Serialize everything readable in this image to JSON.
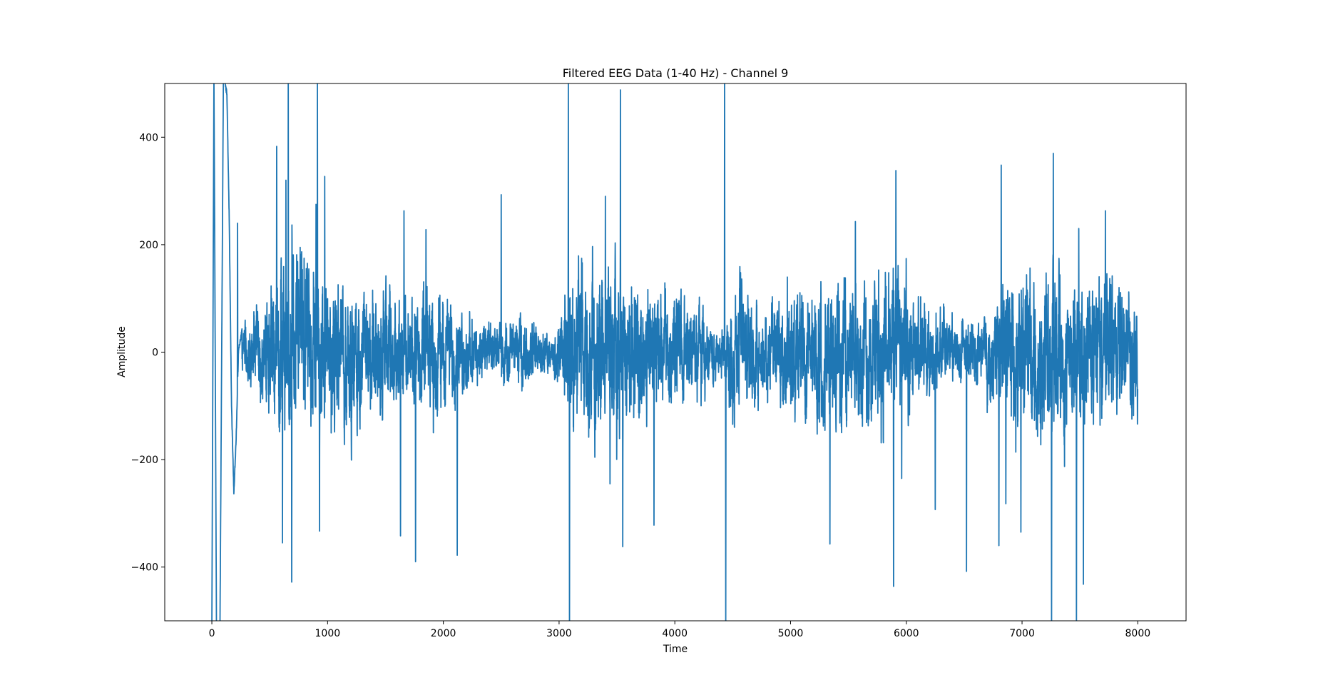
{
  "chart_data": {
    "type": "line",
    "title": "Filtered EEG Data (1-40 Hz) - Channel 9",
    "xlabel": "Time",
    "ylabel": "Amplitude",
    "xlim": [
      -407,
      8417
    ],
    "ylim": [
      -500,
      500
    ],
    "xticks": [
      0,
      1000,
      2000,
      3000,
      4000,
      5000,
      6000,
      7000,
      8000
    ],
    "xtick_labels": [
      "0",
      "1000",
      "2000",
      "3000",
      "4000",
      "5000",
      "6000",
      "7000",
      "8000"
    ],
    "yticks": [
      400,
      200,
      0,
      -200,
      -400
    ],
    "ytick_labels": [
      "400",
      "200",
      "0",
      "−200",
      "−400"
    ],
    "grid": false,
    "legend": null,
    "series": [
      {
        "name": "Channel 9",
        "color": "#1f77b4",
        "x_range": [
          0,
          7999
        ],
        "n_samples": 8000,
        "description": "Band-pass filtered (1-40 Hz) EEG trace; large filter edge transient at start, noisy oscillation mostly within ±200 with spikes beyond ±400",
        "envelope": [
          {
            "t": 0,
            "amp": 40
          },
          {
            "t": 250,
            "amp": 40
          },
          {
            "t": 500,
            "amp": 90
          },
          {
            "t": 700,
            "amp": 150
          },
          {
            "t": 1000,
            "amp": 110
          },
          {
            "t": 1500,
            "amp": 100
          },
          {
            "t": 1700,
            "amp": 75
          },
          {
            "t": 1900,
            "amp": 95
          },
          {
            "t": 2200,
            "amp": 60
          },
          {
            "t": 2500,
            "amp": 40
          },
          {
            "t": 2700,
            "amp": 55
          },
          {
            "t": 2950,
            "amp": 25
          },
          {
            "t": 3100,
            "amp": 120
          },
          {
            "t": 3500,
            "amp": 140
          },
          {
            "t": 3800,
            "amp": 100
          },
          {
            "t": 4200,
            "amp": 70
          },
          {
            "t": 4400,
            "amp": 30
          },
          {
            "t": 4500,
            "amp": 95
          },
          {
            "t": 4800,
            "amp": 70
          },
          {
            "t": 5000,
            "amp": 100
          },
          {
            "t": 5500,
            "amp": 110
          },
          {
            "t": 6000,
            "amp": 115
          },
          {
            "t": 6200,
            "amp": 60
          },
          {
            "t": 6500,
            "amp": 45
          },
          {
            "t": 6650,
            "amp": 60
          },
          {
            "t": 6900,
            "amp": 120
          },
          {
            "t": 7300,
            "amp": 125
          },
          {
            "t": 7700,
            "amp": 110
          },
          {
            "t": 7999,
            "amp": 85
          }
        ],
        "transient": [
          {
            "t": 0,
            "v": -520
          },
          {
            "t": 18,
            "v": 520
          },
          {
            "t": 40,
            "v": -520
          },
          {
            "t": 70,
            "v": -520
          },
          {
            "t": 100,
            "v": 520
          },
          {
            "t": 130,
            "v": 480
          },
          {
            "t": 150,
            "v": 250
          },
          {
            "t": 170,
            "v": -100
          },
          {
            "t": 190,
            "v": -260
          },
          {
            "t": 210,
            "v": -160
          },
          {
            "t": 230,
            "v": 0
          },
          {
            "t": 260,
            "v": 40
          }
        ],
        "spikes": [
          {
            "t": 222,
            "v": 240
          },
          {
            "t": 560,
            "v": 383
          },
          {
            "t": 610,
            "v": -355
          },
          {
            "t": 640,
            "v": 320
          },
          {
            "t": 660,
            "v": 520
          },
          {
            "t": 690,
            "v": -428
          },
          {
            "t": 900,
            "v": 275
          },
          {
            "t": 912,
            "v": 520
          },
          {
            "t": 930,
            "v": -333
          },
          {
            "t": 975,
            "v": 327
          },
          {
            "t": 1630,
            "v": -342
          },
          {
            "t": 1660,
            "v": 263
          },
          {
            "t": 1760,
            "v": -390
          },
          {
            "t": 1850,
            "v": 228
          },
          {
            "t": 2120,
            "v": -378
          },
          {
            "t": 2500,
            "v": 293
          },
          {
            "t": 3080,
            "v": 520
          },
          {
            "t": 3090,
            "v": -520
          },
          {
            "t": 3400,
            "v": 290
          },
          {
            "t": 3440,
            "v": -245
          },
          {
            "t": 3530,
            "v": 488
          },
          {
            "t": 3550,
            "v": -362
          },
          {
            "t": 3820,
            "v": -322
          },
          {
            "t": 4430,
            "v": 520
          },
          {
            "t": 4440,
            "v": -520
          },
          {
            "t": 5340,
            "v": -357
          },
          {
            "t": 5560,
            "v": 243
          },
          {
            "t": 5890,
            "v": -436
          },
          {
            "t": 5910,
            "v": 338
          },
          {
            "t": 5960,
            "v": -235
          },
          {
            "t": 6250,
            "v": -293
          },
          {
            "t": 6520,
            "v": -408
          },
          {
            "t": 6800,
            "v": -360
          },
          {
            "t": 6820,
            "v": 348
          },
          {
            "t": 6860,
            "v": -282
          },
          {
            "t": 6990,
            "v": -335
          },
          {
            "t": 7270,
            "v": 370
          },
          {
            "t": 7255,
            "v": -520
          },
          {
            "t": 7470,
            "v": -520
          },
          {
            "t": 7490,
            "v": 230
          },
          {
            "t": 7530,
            "v": -432
          },
          {
            "t": 7720,
            "v": 263
          }
        ]
      }
    ]
  }
}
